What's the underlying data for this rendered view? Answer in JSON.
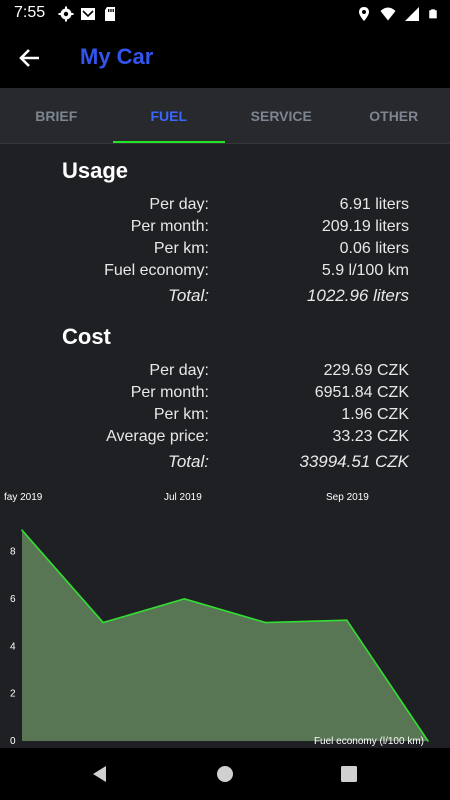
{
  "status_bar": {
    "time": "7:55",
    "left_icons": [
      "gear-icon",
      "mail-icon",
      "sd-card-icon"
    ],
    "right_icons": [
      "location-icon",
      "wifi-icon",
      "signal-icon",
      "battery-icon"
    ]
  },
  "app_bar": {
    "title": "My Car",
    "title_color": "#3355ee"
  },
  "tabs": [
    {
      "label": "BRIEF",
      "active": false
    },
    {
      "label": "FUEL",
      "active": true
    },
    {
      "label": "SERVICE",
      "active": false
    },
    {
      "label": "OTHER",
      "active": false
    }
  ],
  "usage": {
    "title": "Usage",
    "rows": [
      {
        "label": "Per day:",
        "value": "6.91 liters"
      },
      {
        "label": "Per month:",
        "value": "209.19 liters"
      },
      {
        "label": "Per km:",
        "value": "0.06 liters"
      },
      {
        "label": "Fuel economy:",
        "value": "5.9 l/100 km"
      }
    ],
    "total": {
      "label": "Total:",
      "value": "1022.96 liters"
    }
  },
  "cost": {
    "title": "Cost",
    "rows": [
      {
        "label": "Per day:",
        "value": "229.69 CZK"
      },
      {
        "label": "Per month:",
        "value": "6951.84 CZK"
      },
      {
        "label": "Per km:",
        "value": "1.96 CZK"
      },
      {
        "label": "Average price:",
        "value": "33.23 CZK"
      }
    ],
    "total": {
      "label": "Total:",
      "value": "33994.51 CZK"
    }
  },
  "chart_data": {
    "type": "area",
    "x_tick_labels": [
      "fay 2019",
      "Jul 2019",
      "Sep 2019"
    ],
    "y_ticks": [
      0,
      2,
      4,
      6,
      8
    ],
    "ylim": [
      0,
      9.5
    ],
    "series": [
      {
        "name": "Fuel economy (l/100 km)",
        "color": "#33dd33",
        "fill": "#5e7e5a",
        "values": [
          8.9,
          5.0,
          6.0,
          5.0,
          5.1,
          0.0
        ]
      }
    ],
    "grid": false,
    "legend": "bottom-right"
  },
  "nav_bar": {
    "buttons": [
      "back-triangle-icon",
      "home-circle-icon",
      "recents-square-icon"
    ]
  },
  "colors": {
    "accent_green": "#22e622",
    "background": "#1f2023",
    "tab_inactive": "#7c8590"
  }
}
